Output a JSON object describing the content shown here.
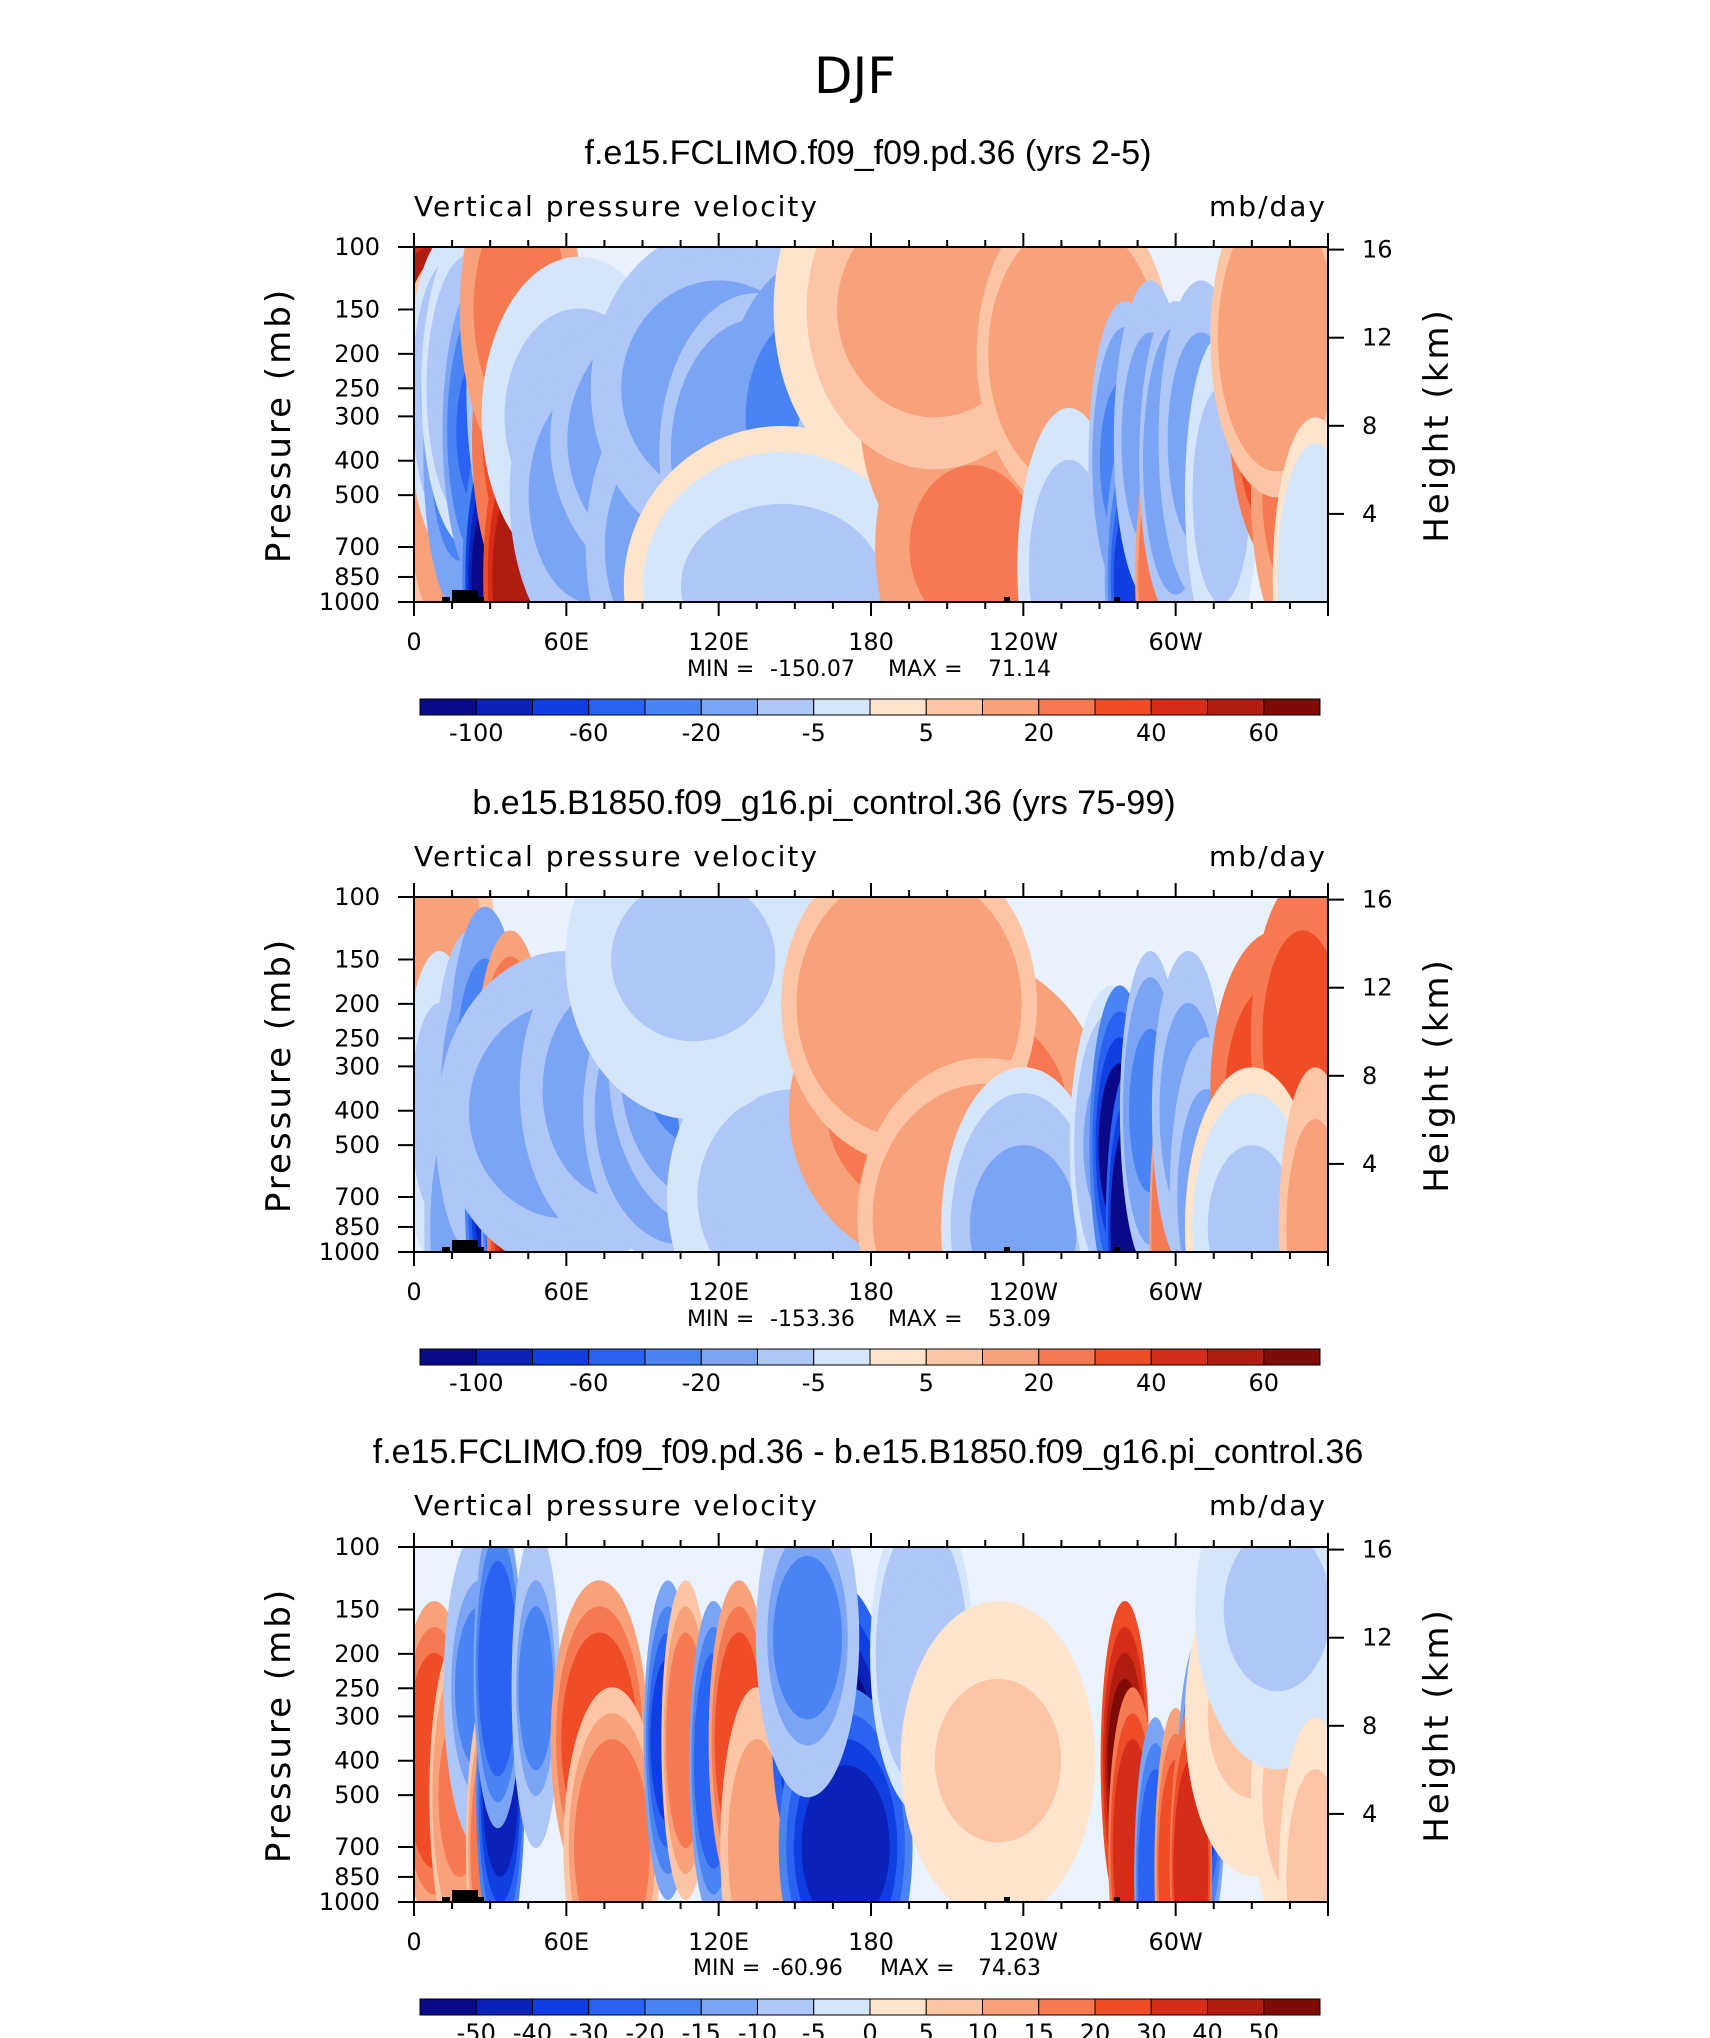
{
  "page_title": "DJF",
  "chart_data": [
    {
      "type": "heatmap",
      "title": "f.e15.FCLIMO.f09_f09.pd.36 (yrs 2-5)",
      "left_label": "Vertical pressure velocity",
      "right_label": "mb/day",
      "ylabel": "Pressure (mb)",
      "y2label": "Height (km)",
      "x_ticks": [
        "0",
        "60E",
        "120E",
        "180",
        "120W",
        "60W"
      ],
      "x_tick_lons": [
        0,
        60,
        120,
        180,
        240,
        300
      ],
      "xlim": [
        0,
        360
      ],
      "y_ticks": [
        "100",
        "150",
        "200",
        "250",
        "300",
        "400",
        "500",
        "700",
        "850",
        "1000"
      ],
      "y_tick_values": [
        100,
        150,
        200,
        250,
        300,
        400,
        500,
        700,
        850,
        1000
      ],
      "ylim": [
        1000,
        100
      ],
      "y_scale": "log",
      "y2_ticks": [
        "16",
        "12",
        "8",
        "4"
      ],
      "stats": {
        "min_label": "MIN =",
        "min": "-150.07",
        "max_label": "MAX =",
        "max": "71.14"
      },
      "colorbar_labels": [
        "-100",
        "-60",
        "-20",
        "-5",
        "5",
        "20",
        "40",
        "60"
      ],
      "colorbar_colors": [
        "#0a0a88",
        "#0a22b8",
        "#0f3fe0",
        "#2a62f2",
        "#4a84f2",
        "#7ca4f5",
        "#aec7f7",
        "#d5e6fb",
        "#fde4cd",
        "#fcc6a6",
        "#f8a27c",
        "#f57a52",
        "#ef4c28",
        "#d52d17",
        "#b01c10",
        "#7e0b05"
      ],
      "blobs": [
        [
          0,
          8,
          220,
          10,
          22
        ],
        [
          0,
          5,
          240,
          80,
          12
        ],
        [
          1,
          11,
          300,
          10,
          14
        ],
        [
          1,
          12,
          420,
          12,
          20
        ],
        [
          1,
          10,
          560,
          8,
          10
        ],
        [
          2,
          14,
          260,
          -20,
          12
        ],
        [
          2,
          18,
          380,
          -50,
          10
        ],
        [
          2,
          22,
          250,
          -18,
          14
        ],
        [
          3,
          28,
          330,
          -65,
          12
        ],
        [
          3,
          31,
          850,
          -130,
          8
        ],
        [
          4,
          35,
          250,
          -30,
          10
        ],
        [
          4,
          42,
          350,
          25,
          14
        ],
        [
          4,
          44,
          850,
          60,
          12
        ],
        [
          4,
          42,
          150,
          15,
          18
        ],
        [
          5,
          65,
          300,
          -15,
          30
        ],
        [
          5,
          70,
          500,
          -25,
          25
        ],
        [
          6,
          110,
          350,
          -40,
          45
        ],
        [
          6,
          100,
          700,
          -30,
          25
        ],
        [
          6,
          120,
          250,
          -25,
          40
        ],
        [
          7,
          135,
          380,
          -35,
          30
        ],
        [
          7,
          160,
          300,
          -50,
          30
        ],
        [
          7,
          175,
          500,
          -25,
          20
        ],
        [
          8,
          145,
          900,
          -10,
          50
        ],
        [
          8,
          180,
          150,
          -5,
          30
        ],
        [
          9,
          220,
          300,
          15,
          35
        ],
        [
          9,
          240,
          400,
          18,
          30
        ],
        [
          9,
          220,
          700,
          12,
          30
        ],
        [
          10,
          205,
          150,
          8,
          40
        ],
        [
          10,
          260,
          200,
          10,
          30
        ],
        [
          11,
          258,
          800,
          -15,
          15
        ],
        [
          11,
          280,
          400,
          -40,
          10
        ],
        [
          12,
          284,
          850,
          -80,
          8
        ],
        [
          12,
          290,
          350,
          -30,
          10
        ],
        [
          13,
          296,
          850,
          20,
          8
        ],
        [
          13,
          300,
          400,
          -35,
          10
        ],
        [
          14,
          310,
          350,
          -30,
          12
        ],
        [
          14,
          318,
          500,
          -15,
          10
        ],
        [
          15,
          345,
          300,
          40,
          18
        ],
        [
          15,
          350,
          500,
          15,
          15
        ],
        [
          16,
          340,
          180,
          10,
          20
        ],
        [
          16,
          355,
          850,
          -8,
          12
        ]
      ]
    },
    {
      "type": "heatmap",
      "title": "b.e15.B1850.f09_g16.pi_control.36 (yrs 75-99)",
      "left_label": "Vertical pressure velocity",
      "right_label": "mb/day",
      "ylabel": "Pressure (mb)",
      "y2label": "Height (km)",
      "x_ticks": [
        "0",
        "60E",
        "120E",
        "180",
        "120W",
        "60W"
      ],
      "x_tick_lons": [
        0,
        60,
        120,
        180,
        240,
        300
      ],
      "xlim": [
        0,
        360
      ],
      "y_ticks": [
        "100",
        "150",
        "200",
        "250",
        "300",
        "400",
        "500",
        "700",
        "850",
        "1000"
      ],
      "y_tick_values": [
        100,
        150,
        200,
        250,
        300,
        400,
        500,
        700,
        850,
        1000
      ],
      "ylim": [
        1000,
        100
      ],
      "y_scale": "log",
      "y2_ticks": [
        "16",
        "12",
        "8",
        "4"
      ],
      "stats": {
        "min_label": "MIN =",
        "min": "-153.36",
        "max_label": "MAX =",
        "max": "53.09"
      },
      "colorbar_labels": [
        "-100",
        "-60",
        "-20",
        "-5",
        "5",
        "20",
        "40",
        "60"
      ],
      "colorbar_colors": [
        "#0a0a88",
        "#0a22b8",
        "#0f3fe0",
        "#2a62f2",
        "#4a84f2",
        "#7ca4f5",
        "#aec7f7",
        "#d5e6fb",
        "#fde4cd",
        "#fcc6a6",
        "#f8a27c",
        "#f57a52",
        "#ef4c28",
        "#d52d17",
        "#b01c10",
        "#7e0b05"
      ],
      "blobs": [
        [
          0,
          5,
          300,
          10,
          12
        ],
        [
          0,
          12,
          150,
          8,
          15
        ],
        [
          1,
          10,
          400,
          -15,
          10
        ],
        [
          1,
          16,
          850,
          -25,
          8
        ],
        [
          2,
          22,
          350,
          -30,
          10
        ],
        [
          2,
          28,
          300,
          -55,
          10
        ],
        [
          3,
          32,
          700,
          -110,
          8
        ],
        [
          3,
          36,
          850,
          -90,
          6
        ],
        [
          4,
          38,
          350,
          20,
          10
        ],
        [
          4,
          43,
          850,
          45,
          10
        ],
        [
          5,
          60,
          400,
          -25,
          40
        ],
        [
          5,
          80,
          350,
          -30,
          30
        ],
        [
          6,
          105,
          400,
          -35,
          30
        ],
        [
          6,
          115,
          300,
          -45,
          30
        ],
        [
          7,
          130,
          350,
          -40,
          20
        ],
        [
          7,
          145,
          400,
          -30,
          25
        ],
        [
          8,
          150,
          700,
          -15,
          40
        ],
        [
          8,
          110,
          150,
          -12,
          40
        ],
        [
          9,
          210,
          400,
          16,
          50
        ],
        [
          9,
          195,
          200,
          10,
          40
        ],
        [
          10,
          225,
          800,
          10,
          40
        ],
        [
          11,
          240,
          850,
          -20,
          25
        ],
        [
          11,
          275,
          500,
          -20,
          12
        ],
        [
          12,
          278,
          500,
          -120,
          8
        ],
        [
          12,
          282,
          850,
          -150,
          6
        ],
        [
          13,
          290,
          400,
          -40,
          8
        ],
        [
          13,
          298,
          850,
          20,
          5
        ],
        [
          14,
          305,
          400,
          -25,
          10
        ],
        [
          14,
          312,
          700,
          -30,
          10
        ],
        [
          15,
          340,
          350,
          30,
          20
        ],
        [
          15,
          350,
          250,
          25,
          15
        ],
        [
          16,
          330,
          850,
          -10,
          20
        ],
        [
          16,
          355,
          850,
          8,
          10
        ]
      ]
    },
    {
      "type": "heatmap",
      "title": "f.e15.FCLIMO.f09_f09.pd.36 - b.e15.B1850.f09_g16.pi_control.36",
      "left_label": "Vertical pressure velocity",
      "right_label": "mb/day",
      "ylabel": "Pressure (mb)",
      "y2label": "Height (km)",
      "x_ticks": [
        "0",
        "60E",
        "120E",
        "180",
        "120W",
        "60W"
      ],
      "x_tick_lons": [
        0,
        60,
        120,
        180,
        240,
        300
      ],
      "xlim": [
        0,
        360
      ],
      "y_ticks": [
        "100",
        "150",
        "200",
        "250",
        "300",
        "400",
        "500",
        "700",
        "850",
        "1000"
      ],
      "y_tick_values": [
        100,
        150,
        200,
        250,
        300,
        400,
        500,
        700,
        850,
        1000
      ],
      "ylim": [
        1000,
        100
      ],
      "y_scale": "log",
      "y2_ticks": [
        "16",
        "12",
        "8",
        "4"
      ],
      "stats": {
        "min_label": "MIN =",
        "min": "-60.96",
        "max_label": "MAX =",
        "max": "74.63"
      },
      "colorbar_labels": [
        "-50",
        "-40",
        "-30",
        "-20",
        "-15",
        "-10",
        "-5",
        "0",
        "5",
        "10",
        "15",
        "20",
        "30",
        "40",
        "50"
      ],
      "colorbar_colors": [
        "#0a0a88",
        "#0a22b8",
        "#0f3fe0",
        "#2a62f2",
        "#4a84f2",
        "#7ca4f5",
        "#aec7f7",
        "#d5e6fb",
        "#fde4cd",
        "#fcc6a6",
        "#f8a27c",
        "#f57a52",
        "#ef4c28",
        "#d52d17",
        "#b01c10",
        "#7e0b05"
      ],
      "blobs": [
        [
          0,
          8,
          400,
          30,
          10
        ],
        [
          1,
          18,
          500,
          18,
          8
        ],
        [
          2,
          26,
          250,
          -15,
          10
        ],
        [
          3,
          30,
          700,
          20,
          6
        ],
        [
          3,
          34,
          500,
          -40,
          6
        ],
        [
          4,
          33,
          220,
          -25,
          6
        ],
        [
          5,
          48,
          250,
          -15,
          6
        ],
        [
          6,
          73,
          350,
          30,
          14
        ],
        [
          6,
          78,
          700,
          20,
          14
        ],
        [
          7,
          100,
          350,
          -30,
          6
        ],
        [
          8,
          107,
          350,
          20,
          6
        ],
        [
          9,
          118,
          400,
          -25,
          6
        ],
        [
          10,
          128,
          350,
          30,
          8
        ],
        [
          10,
          135,
          700,
          15,
          10
        ],
        [
          11,
          165,
          350,
          -55,
          18
        ],
        [
          11,
          170,
          700,
          -40,
          20
        ],
        [
          12,
          155,
          180,
          -15,
          15
        ],
        [
          12,
          200,
          200,
          -8,
          15
        ],
        [
          13,
          230,
          400,
          6,
          30
        ],
        [
          14,
          280,
          400,
          60,
          6
        ],
        [
          14,
          283,
          700,
          40,
          6
        ],
        [
          15,
          292,
          850,
          -25,
          5
        ],
        [
          15,
          300,
          800,
          30,
          5
        ],
        [
          16,
          310,
          500,
          -30,
          6
        ],
        [
          16,
          306,
          800,
          40,
          5
        ],
        [
          17,
          330,
          300,
          6,
          20
        ],
        [
          17,
          350,
          500,
          8,
          15
        ],
        [
          18,
          340,
          150,
          -5,
          25
        ],
        [
          18,
          355,
          850,
          8,
          10
        ]
      ]
    }
  ]
}
